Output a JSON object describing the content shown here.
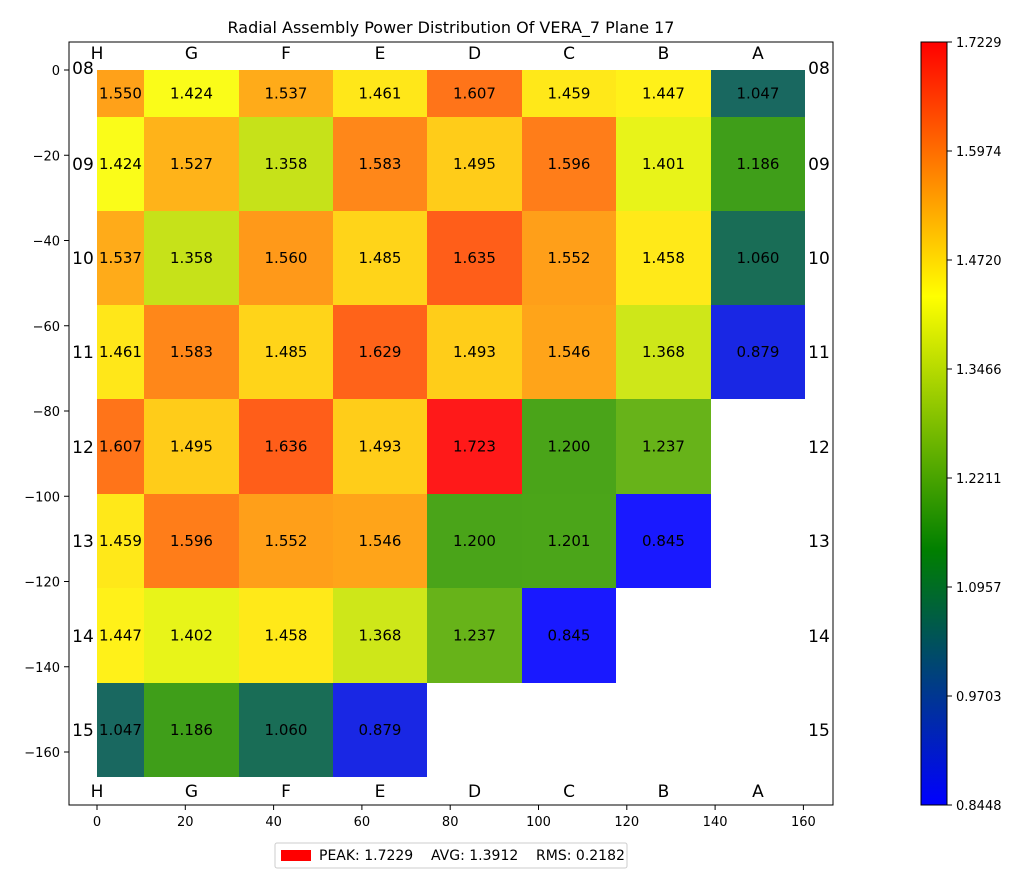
{
  "chart_data": {
    "type": "heatmap",
    "title": "Radial Assembly Power Distribution Of VERA_7 Plane 17",
    "columns": [
      "H",
      "G",
      "F",
      "E",
      "D",
      "C",
      "B",
      "A"
    ],
    "rows": [
      "08",
      "09",
      "10",
      "11",
      "12",
      "13",
      "14",
      "15"
    ],
    "values": [
      [
        "1.550",
        "1.424",
        "1.537",
        "1.461",
        "1.607",
        "1.459",
        "1.447",
        "1.047"
      ],
      [
        "1.424",
        "1.527",
        "1.358",
        "1.583",
        "1.495",
        "1.596",
        "1.401",
        "1.186"
      ],
      [
        "1.537",
        "1.358",
        "1.560",
        "1.485",
        "1.635",
        "1.552",
        "1.458",
        "1.060"
      ],
      [
        "1.461",
        "1.583",
        "1.485",
        "1.629",
        "1.493",
        "1.546",
        "1.368",
        "0.879"
      ],
      [
        "1.607",
        "1.495",
        "1.636",
        "1.493",
        "1.723",
        "1.200",
        "1.237",
        null
      ],
      [
        "1.459",
        "1.596",
        "1.552",
        "1.546",
        "1.200",
        "1.201",
        "0.845",
        null
      ],
      [
        "1.447",
        "1.402",
        "1.458",
        "1.368",
        "1.237",
        "0.845",
        null,
        null
      ],
      [
        "1.047",
        "1.186",
        "1.060",
        "0.879",
        null,
        null,
        null,
        null
      ]
    ],
    "x_ticks": [
      "0",
      "20",
      "40",
      "60",
      "80",
      "100",
      "120",
      "140",
      "160"
    ],
    "y_ticks": [
      "0",
      "−20",
      "−40",
      "−60",
      "−80",
      "−100",
      "−120",
      "−140",
      "−160"
    ],
    "colorbar": {
      "min": 0.8448,
      "max": 1.7229,
      "ticks": [
        "1.7229",
        "1.5974",
        "1.4720",
        "1.3466",
        "1.2211",
        "1.0957",
        "0.9703",
        "0.8448"
      ],
      "colors": [
        "#0000ff",
        "#007f00",
        "#ffff00",
        "#ff0000"
      ]
    },
    "legend": "PEAK: 1.7229    AVG: 1.3912    RMS: 0.2182",
    "legend_color": "#ff0000"
  }
}
